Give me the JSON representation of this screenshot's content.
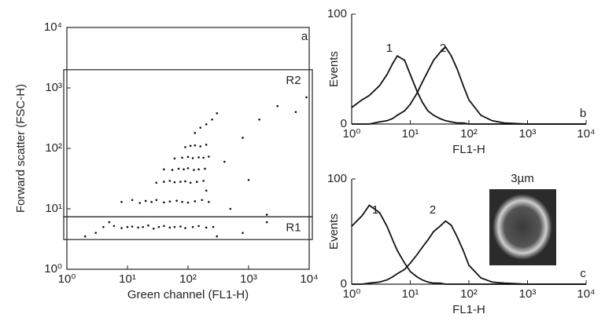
{
  "chart_data": [
    {
      "type": "scatter",
      "xlabel": "Green channel (FL1-H)",
      "ylabel": "Forward scatter (FSC-H)",
      "xscale": "log",
      "yscale": "log",
      "color": "#111111",
      "xlim": [
        1,
        10000
      ],
      "ylim": [
        1,
        10000
      ],
      "xticks": [
        {
          "value": 1,
          "label": "10⁰"
        },
        {
          "value": 10,
          "label": "10¹"
        },
        {
          "value": 100,
          "label": "10²"
        },
        {
          "value": 1000,
          "label": "10³"
        },
        {
          "value": 10000,
          "label": "10⁴"
        }
      ],
      "yticks": [
        {
          "value": 1,
          "label": "10⁰"
        },
        {
          "value": 10,
          "label": "10¹"
        },
        {
          "value": 100,
          "label": "10²"
        },
        {
          "value": 1000,
          "label": "10³"
        },
        {
          "value": 10000,
          "label": "10⁴"
        }
      ],
      "annotations": [
        "a"
      ],
      "regions": [
        {
          "label": "R2",
          "ylim": [
            7.4,
            2000
          ]
        },
        {
          "label": "R1",
          "ylim": [
            3.1,
            7.4
          ]
        }
      ],
      "x": [
        4,
        6,
        8,
        10,
        12,
        15,
        18,
        22,
        27,
        33,
        40,
        50,
        60,
        75,
        90,
        120,
        150,
        200,
        260,
        8,
        12,
        16,
        20,
        25,
        30,
        40,
        50,
        65,
        80,
        100,
        130,
        170,
        220,
        30,
        40,
        50,
        60,
        75,
        90,
        110,
        140,
        180,
        40,
        55,
        70,
        85,
        100,
        125,
        150,
        190,
        60,
        80,
        100,
        120,
        150,
        180,
        220,
        90,
        110,
        130,
        160,
        200,
        130,
        160,
        200,
        250,
        300,
        200,
        400,
        800,
        1500,
        3000,
        6000,
        9000,
        500,
        1000,
        2000,
        2,
        3,
        5,
        300,
        800,
        2000
      ],
      "y": [
        5,
        5.2,
        4.8,
        5,
        5.1,
        4.9,
        5,
        5.3,
        4.7,
        5,
        5.2,
        4.9,
        5,
        5.1,
        4.8,
        5,
        5.2,
        4.9,
        5,
        13,
        14,
        12.5,
        13.5,
        13,
        14,
        12.8,
        13.2,
        13.6,
        13,
        12.7,
        13.3,
        14,
        13,
        27,
        28,
        29,
        27.5,
        28,
        28.5,
        27,
        28,
        29,
        45,
        44,
        46,
        45,
        47,
        44,
        45,
        46,
        68,
        70,
        72,
        69,
        71,
        70,
        73,
        105,
        110,
        112,
        108,
        115,
        180,
        220,
        250,
        300,
        380,
        20,
        60,
        150,
        300,
        500,
        400,
        700,
        10,
        30,
        8,
        3.5,
        4,
        6,
        3.5,
        4,
        6
      ]
    },
    {
      "type": "line",
      "xlabel": "FL1-H",
      "ylabel": "Events",
      "xscale": "log",
      "xlim": [
        1,
        10000
      ],
      "ylim": [
        0,
        100
      ],
      "xticks": [
        {
          "value": 1,
          "label": "10⁰"
        },
        {
          "value": 10,
          "label": "10¹"
        },
        {
          "value": 100,
          "label": "10²"
        },
        {
          "value": 1000,
          "label": "10³"
        },
        {
          "value": 10000,
          "label": "10⁴"
        }
      ],
      "yticks": [
        0,
        100
      ],
      "annotations": [
        "1",
        "2",
        "b"
      ],
      "x": [
        1,
        1.5,
        2,
        3,
        4,
        5,
        6,
        8,
        10,
        13,
        16,
        20,
        25,
        32,
        40,
        50,
        63,
        80,
        100,
        160,
        250,
        400,
        1000,
        3000,
        10000
      ],
      "series": [
        {
          "name": "1",
          "color": "#111111",
          "values": [
            15,
            22,
            26,
            35,
            45,
            55,
            62,
            58,
            45,
            30,
            20,
            12,
            8,
            5,
            3,
            2,
            1,
            1,
            0,
            0,
            0,
            0,
            0,
            0,
            0
          ]
        },
        {
          "name": "2",
          "color": "#111111",
          "values": [
            0,
            0,
            0,
            2,
            3,
            5,
            8,
            12,
            18,
            28,
            38,
            48,
            58,
            65,
            70,
            62,
            50,
            35,
            22,
            8,
            3,
            1,
            0,
            0,
            0
          ]
        }
      ]
    },
    {
      "type": "line",
      "xlabel": "FL1-H",
      "ylabel": "Events",
      "xscale": "log",
      "xlim": [
        1,
        10000
      ],
      "ylim": [
        0,
        100
      ],
      "xticks": [
        {
          "value": 1,
          "label": "10⁰"
        },
        {
          "value": 10,
          "label": "10¹"
        },
        {
          "value": 100,
          "label": "10²"
        },
        {
          "value": 1000,
          "label": "10³"
        },
        {
          "value": 10000,
          "label": "10⁴"
        }
      ],
      "yticks": [
        0,
        100
      ],
      "annotations": [
        "1",
        "2",
        "c",
        "3µm"
      ],
      "x": [
        1,
        1.5,
        2,
        3,
        4,
        5,
        6,
        8,
        10,
        13,
        16,
        20,
        25,
        32,
        40,
        50,
        63,
        80,
        100,
        160,
        250,
        400,
        1000,
        3000,
        10000
      ],
      "series": [
        {
          "name": "1",
          "color": "#111111",
          "values": [
            55,
            65,
            75,
            68,
            55,
            42,
            32,
            20,
            12,
            7,
            4,
            2,
            1,
            1,
            0,
            0,
            0,
            0,
            0,
            0,
            0,
            0,
            0,
            0,
            0
          ]
        },
        {
          "name": "2",
          "color": "#111111",
          "values": [
            0,
            0,
            1,
            2,
            4,
            7,
            10,
            14,
            20,
            28,
            35,
            42,
            50,
            55,
            60,
            56,
            45,
            32,
            18,
            6,
            2,
            1,
            0,
            0,
            0
          ]
        }
      ]
    }
  ]
}
